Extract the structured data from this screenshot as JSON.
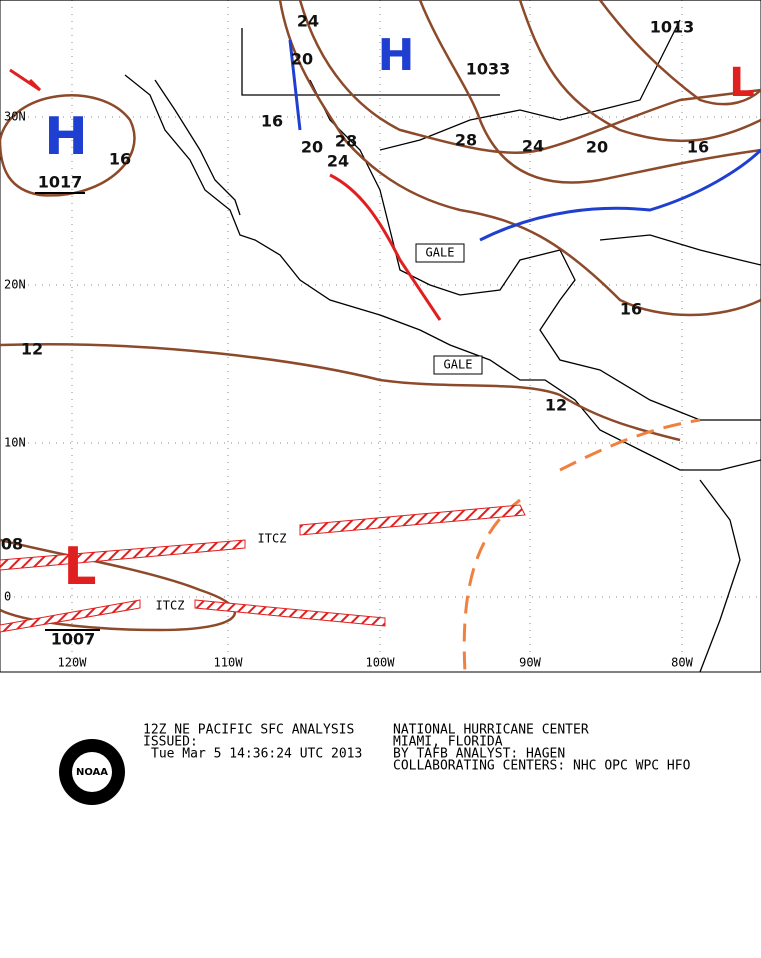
{
  "map": {
    "isobar_labels": [
      "24",
      "20",
      "16",
      "20",
      "28",
      "24",
      "28",
      "24",
      "20",
      "16",
      "16",
      "16",
      "12",
      "12",
      "08"
    ],
    "centers": [
      {
        "symbol": "H",
        "pressure": 1017
      },
      {
        "symbol": "H"
      },
      {
        "symbol": "L",
        "pressure": 1007
      },
      {
        "symbol": "L"
      }
    ],
    "other_pressures": [
      1013,
      1033
    ],
    "warnings": [
      "GALE",
      "GALE"
    ],
    "itcz": [
      "ITCZ",
      "ITCZ"
    ],
    "lat_labels": [
      "30N",
      "20N",
      "10N",
      "0"
    ],
    "lon_labels": [
      "120W",
      "110W",
      "100W",
      "90W",
      "80W"
    ]
  },
  "footer": {
    "product": "12Z NE PACIFIC SFC ANALYSIS",
    "issued": "ISSUED:",
    "time": "Tue Mar 5 14:36:24 UTC 2013",
    "center": "NATIONAL HURRICANE CENTER",
    "location": "MIAMI, FLORIDA",
    "analyst": "BY TAFB ANALYST: HAGEN",
    "collaborating": "COLLABORATING CENTERS: NHC OPC WPC HFO",
    "logo": "NOAA"
  }
}
